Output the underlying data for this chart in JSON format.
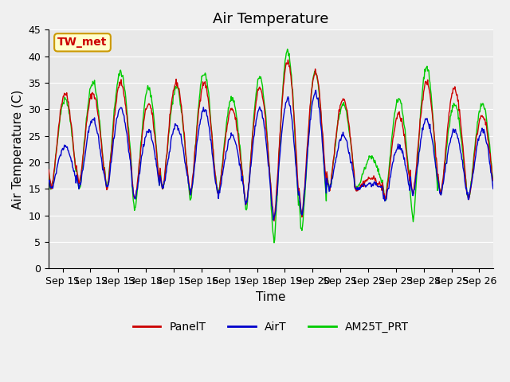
{
  "title": "Air Temperature",
  "ylabel": "Air Temperature (C)",
  "xlabel": "Time",
  "ylim": [
    0,
    45
  ],
  "yticks": [
    0,
    5,
    10,
    15,
    20,
    25,
    30,
    35,
    40,
    45
  ],
  "annotation_text": "TW_met",
  "annotation_color": "#cc0000",
  "annotation_bg": "#ffffcc",
  "annotation_border": "#cc9900",
  "line_panel_color": "#cc0000",
  "line_air_color": "#0000cc",
  "line_am25_color": "#00cc00",
  "legend_labels": [
    "PanelT",
    "AirT",
    "AM25T_PRT"
  ],
  "bg_color_inner": "#e8e8e8",
  "bg_color_outer": "#f0f0f0",
  "title_fontsize": 13,
  "axis_fontsize": 11,
  "tick_fontsize": 9,
  "legend_fontsize": 10,
  "xticklabels": [
    "Sep 11",
    "Sep 12",
    "Sep 13",
    "Sep 14",
    "Sep 15",
    "Sep 16",
    "Sep 17",
    "Sep 18",
    "Sep 19",
    "Sep 20",
    "Sep 21",
    "Sep 22",
    "Sep 23",
    "Sep 24",
    "Sep 25",
    "Sep 26"
  ],
  "n_days": 16,
  "day_maxes_panel": [
    33,
    33,
    35,
    31,
    35,
    35,
    30,
    34,
    39,
    37,
    32,
    17,
    29,
    35,
    34,
    29
  ],
  "day_mins_panel": [
    15,
    16,
    15,
    13,
    15,
    14,
    14,
    12,
    9,
    10,
    15,
    15,
    13,
    14,
    14,
    13
  ],
  "day_maxes_air": [
    23,
    28,
    30,
    26,
    27,
    30,
    25,
    30,
    32,
    33,
    25,
    16,
    23,
    28,
    26,
    26
  ],
  "day_mins_air": [
    15,
    15,
    15,
    13,
    15,
    14,
    14,
    12,
    9,
    10,
    15,
    15,
    13,
    14,
    14,
    13
  ],
  "day_maxes_am25": [
    32,
    35,
    37,
    34,
    34,
    37,
    32,
    36,
    41,
    37,
    31,
    21,
    32,
    38,
    31,
    31
  ],
  "day_mins_am25": [
    15,
    15,
    15,
    11,
    15,
    13,
    14,
    11,
    5,
    7,
    15,
    15,
    13,
    9,
    14,
    13
  ]
}
